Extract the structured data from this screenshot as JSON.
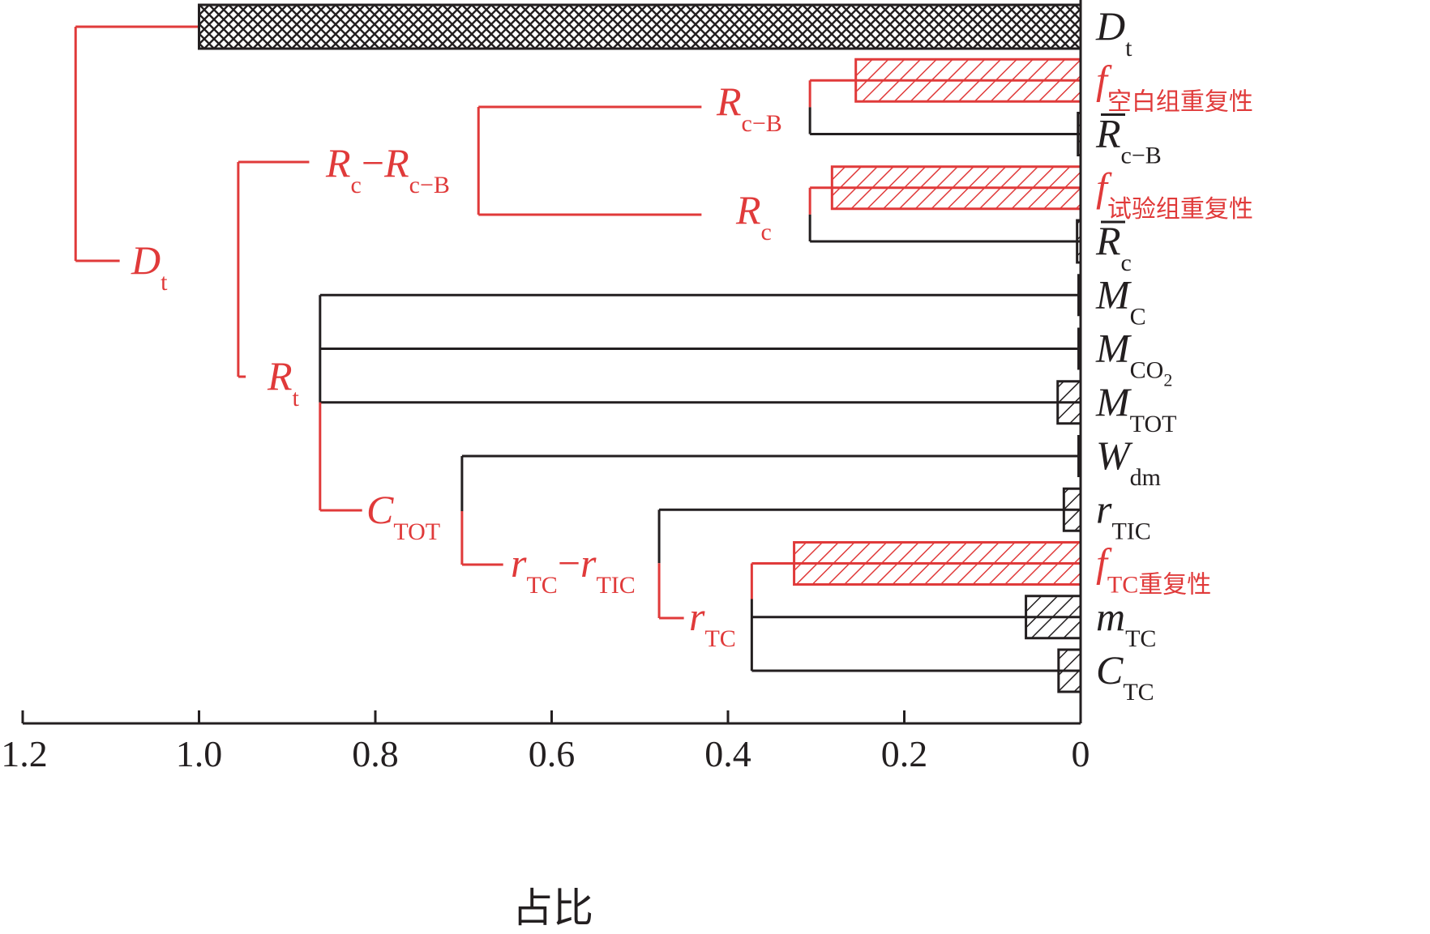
{
  "chart_data": {
    "type": "bar",
    "orientation": "horizontal",
    "xlabel": "占比",
    "xlim": [
      1.2,
      0
    ],
    "xticks": [
      "1.2",
      "1.0",
      "0.8",
      "0.6",
      "0.4",
      "0.2",
      "0"
    ],
    "grid": false,
    "legend": "none",
    "colors": {
      "highlight": "#e03a3a",
      "normal": "#231f20"
    },
    "bars": [
      {
        "key": "Dt",
        "value": 1.0,
        "color": "black",
        "pattern": "crosshatch"
      },
      {
        "key": "f_blank",
        "value": 0.255,
        "color": "red",
        "pattern": "diagonal"
      },
      {
        "key": "Rbar_cB",
        "value": 0.003,
        "color": "black",
        "pattern": "diagonal"
      },
      {
        "key": "f_test",
        "value": 0.282,
        "color": "red",
        "pattern": "diagonal"
      },
      {
        "key": "Rbar_c",
        "value": 0.004,
        "color": "black",
        "pattern": "diagonal"
      },
      {
        "key": "MC",
        "value": 0.0,
        "color": "black",
        "pattern": "diagonal"
      },
      {
        "key": "MCO2",
        "value": 0.0,
        "color": "black",
        "pattern": "diagonal"
      },
      {
        "key": "MTOT",
        "value": 0.026,
        "color": "black",
        "pattern": "diagonal"
      },
      {
        "key": "Wdm",
        "value": 0.0,
        "color": "black",
        "pattern": "diagonal"
      },
      {
        "key": "rTIC",
        "value": 0.019,
        "color": "black",
        "pattern": "diagonal"
      },
      {
        "key": "f_TC",
        "value": 0.325,
        "color": "red",
        "pattern": "diagonal"
      },
      {
        "key": "mTC",
        "value": 0.062,
        "color": "black",
        "pattern": "diagonal"
      },
      {
        "key": "CTC",
        "value": 0.025,
        "color": "black",
        "pattern": "diagonal"
      }
    ],
    "labels": {
      "Dt": {
        "main": "D",
        "sub": "t",
        "color": "black"
      },
      "f_blank": {
        "main": "f",
        "sub": "空白组重复性",
        "color": "red"
      },
      "Rbar_cB": {
        "main": "R",
        "sub": "c−B",
        "color": "black",
        "overbar": true
      },
      "f_test": {
        "main": "f",
        "sub": "试验组重复性",
        "color": "red"
      },
      "Rbar_c": {
        "main": "R",
        "sub": "c",
        "color": "black",
        "overbar": true
      },
      "MC": {
        "main": "M",
        "sub": "C",
        "color": "black"
      },
      "MCO2": {
        "main": "M",
        "sub": "CO",
        "sub2": "2",
        "color": "black"
      },
      "MTOT": {
        "main": "M",
        "sub": "TOT",
        "color": "black"
      },
      "Wdm": {
        "main": "W",
        "sub": "dm",
        "color": "black"
      },
      "rTIC": {
        "main": "r",
        "sub": "TIC",
        "color": "black"
      },
      "f_TC": {
        "main": "f",
        "sub": "TC重复性",
        "color": "red"
      },
      "mTC": {
        "main": "m",
        "sub": "TC",
        "color": "black"
      },
      "CTC": {
        "main": "C",
        "sub": "TC",
        "color": "black"
      }
    },
    "tree_nodes": [
      {
        "key": "n_Dt",
        "main": "D",
        "sub": "t",
        "value": 1.14
      },
      {
        "key": "n_RcRcB",
        "main": "R",
        "sub": "c",
        "mid": "−",
        "main2": "R",
        "sub3": "c−B",
        "value": 0.9555
      },
      {
        "key": "n_RcB",
        "main": "R",
        "sub": "c−B",
        "value": 0.307
      },
      {
        "key": "n_Rc",
        "main": "R",
        "sub": "c",
        "value": 0.307
      },
      {
        "key": "n_Rt",
        "main": "R",
        "sub": "t",
        "value": 0.8627
      },
      {
        "key": "n_CTOT",
        "main": "C",
        "sub": "TOT",
        "value": 0.8627
      },
      {
        "key": "n_rTCrTIC",
        "main": "r",
        "sub": "TC",
        "mid": "−",
        "main2": "r",
        "sub3": "TIC",
        "value": 0.7017
      },
      {
        "key": "n_rTC",
        "main": "r",
        "sub": "TC",
        "value": 0.4781
      }
    ]
  }
}
